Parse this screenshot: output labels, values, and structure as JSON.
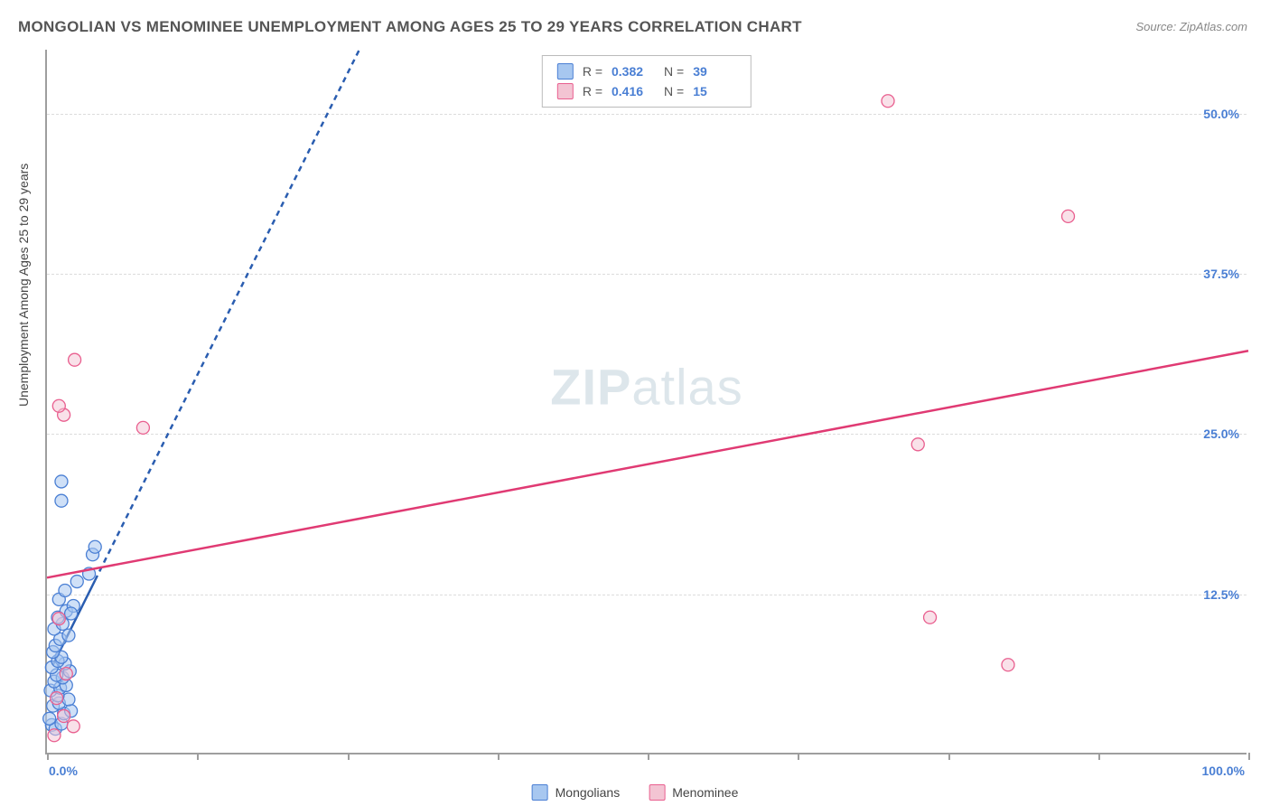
{
  "title": "MONGOLIAN VS MENOMINEE UNEMPLOYMENT AMONG AGES 25 TO 29 YEARS CORRELATION CHART",
  "source": "Source: ZipAtlas.com",
  "watermark": {
    "part1": "ZIP",
    "part2": "atlas"
  },
  "ylabel": "Unemployment Among Ages 25 to 29 years",
  "chart": {
    "type": "scatter",
    "background_color": "#ffffff",
    "grid_color": "#dcdcdc",
    "axis_color": "#9e9e9e",
    "title_color": "#555555",
    "xlim": [
      0,
      100
    ],
    "ylim": [
      0,
      55
    ],
    "x_ticks": [
      0,
      12.5,
      25,
      37.5,
      50,
      62.5,
      75,
      87.5,
      100
    ],
    "y_gridlines": [
      12.5,
      25,
      37.5,
      50
    ],
    "y_tick_labels": [
      {
        "value": 12.5,
        "text": "12.5%",
        "color": "#4a7fd4"
      },
      {
        "value": 25,
        "text": "25.0%",
        "color": "#4a7fd4"
      },
      {
        "value": 37.5,
        "text": "37.5%",
        "color": "#4a7fd4"
      },
      {
        "value": 50,
        "text": "50.0%",
        "color": "#4a7fd4"
      }
    ],
    "x_axis_labels": [
      {
        "value": 0,
        "text": "0.0%",
        "color": "#4a7fd4",
        "align": "start"
      },
      {
        "value": 100,
        "text": "100.0%",
        "color": "#4a7fd4",
        "align": "end"
      }
    ],
    "series": [
      {
        "id": "mongolians",
        "label": "Mongolians",
        "marker_color_fill": "#a7c7f0",
        "marker_color_stroke": "#4a7fd4",
        "marker_fill_opacity": 0.55,
        "marker_radius": 7,
        "trend_color": "#2a5db0",
        "trend_stroke_width": 2.5,
        "trend_dash": "6 5",
        "trend_dash_solid_until_x": 4,
        "trend_start": {
          "x": 0.5,
          "y": 7
        },
        "trend_end": {
          "x": 26,
          "y": 55
        },
        "R_label": "R =",
        "R_value": "0.382",
        "N_label": "N =",
        "N_value": "39",
        "points": [
          {
            "x": 0.4,
            "y": 2.3
          },
          {
            "x": 0.7,
            "y": 2.0
          },
          {
            "x": 1.2,
            "y": 2.4
          },
          {
            "x": 0.2,
            "y": 2.8
          },
          {
            "x": 1.4,
            "y": 3.2
          },
          {
            "x": 2.0,
            "y": 3.4
          },
          {
            "x": 0.5,
            "y": 3.8
          },
          {
            "x": 1.0,
            "y": 4.0
          },
          {
            "x": 1.8,
            "y": 4.3
          },
          {
            "x": 0.9,
            "y": 4.6
          },
          {
            "x": 0.3,
            "y": 5.0
          },
          {
            "x": 1.1,
            "y": 5.2
          },
          {
            "x": 1.6,
            "y": 5.4
          },
          {
            "x": 0.6,
            "y": 5.7
          },
          {
            "x": 1.3,
            "y": 6.0
          },
          {
            "x": 0.8,
            "y": 6.2
          },
          {
            "x": 1.9,
            "y": 6.5
          },
          {
            "x": 0.4,
            "y": 6.8
          },
          {
            "x": 1.5,
            "y": 7.1
          },
          {
            "x": 0.9,
            "y": 7.3
          },
          {
            "x": 1.2,
            "y": 7.6
          },
          {
            "x": 0.5,
            "y": 8.0
          },
          {
            "x": 0.7,
            "y": 8.5
          },
          {
            "x": 1.1,
            "y": 9.0
          },
          {
            "x": 1.8,
            "y": 9.3
          },
          {
            "x": 0.6,
            "y": 9.8
          },
          {
            "x": 1.3,
            "y": 10.2
          },
          {
            "x": 0.9,
            "y": 10.7
          },
          {
            "x": 1.6,
            "y": 11.2
          },
          {
            "x": 2.2,
            "y": 11.6
          },
          {
            "x": 1.0,
            "y": 12.1
          },
          {
            "x": 1.5,
            "y": 12.8
          },
          {
            "x": 2.5,
            "y": 13.5
          },
          {
            "x": 3.5,
            "y": 14.1
          },
          {
            "x": 3.8,
            "y": 15.6
          },
          {
            "x": 4.0,
            "y": 16.2
          },
          {
            "x": 1.2,
            "y": 19.8
          },
          {
            "x": 1.2,
            "y": 21.3
          },
          {
            "x": 2.0,
            "y": 11.0
          }
        ]
      },
      {
        "id": "menominee",
        "label": "Menominee",
        "marker_color_fill": "#f3c4d3",
        "marker_color_stroke": "#e95f8f",
        "marker_fill_opacity": 0.5,
        "marker_radius": 7,
        "trend_color": "#e03a73",
        "trend_stroke_width": 2.5,
        "trend_dash": null,
        "trend_start": {
          "x": 0,
          "y": 13.8
        },
        "trend_end": {
          "x": 100,
          "y": 31.5
        },
        "R_label": "R =",
        "R_value": "0.416",
        "N_label": "N =",
        "N_value": "15",
        "points": [
          {
            "x": 0.6,
            "y": 1.5
          },
          {
            "x": 2.2,
            "y": 2.2
          },
          {
            "x": 1.4,
            "y": 3.0
          },
          {
            "x": 0.8,
            "y": 4.4
          },
          {
            "x": 1.6,
            "y": 6.3
          },
          {
            "x": 1.0,
            "y": 10.6
          },
          {
            "x": 80.0,
            "y": 7.0
          },
          {
            "x": 73.5,
            "y": 10.7
          },
          {
            "x": 72.5,
            "y": 24.2
          },
          {
            "x": 8.0,
            "y": 25.5
          },
          {
            "x": 1.4,
            "y": 26.5
          },
          {
            "x": 1.0,
            "y": 27.2
          },
          {
            "x": 2.3,
            "y": 30.8
          },
          {
            "x": 85.0,
            "y": 42.0
          },
          {
            "x": 70.0,
            "y": 51.0
          }
        ]
      }
    ]
  },
  "legend_bottom": [
    {
      "series": "mongolians"
    },
    {
      "series": "menominee"
    }
  ]
}
